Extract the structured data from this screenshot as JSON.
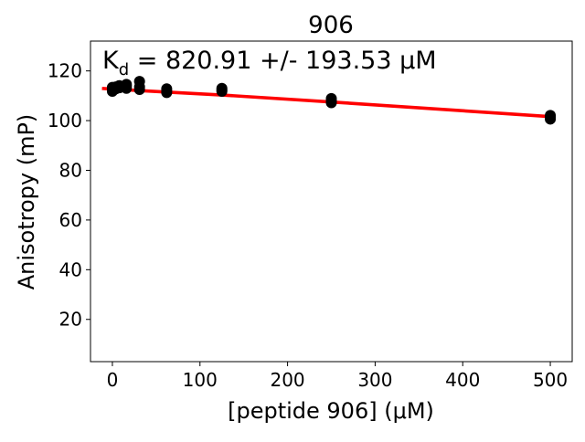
{
  "chart_data": {
    "type": "scatter",
    "title": "906",
    "xlabel": "[peptide 906] (μM)",
    "ylabel": "Anisotropy (mP)",
    "annotation": {
      "prefix": "K",
      "subscript": "d",
      "text": " = 820.91 +/- 193.53 μM"
    },
    "xlim": [
      -25,
      525
    ],
    "ylim": [
      3,
      132
    ],
    "xticks": [
      0,
      100,
      200,
      300,
      400,
      500
    ],
    "yticks": [
      20,
      40,
      60,
      80,
      100,
      120
    ],
    "grid": false,
    "series": [
      {
        "kind": "points",
        "color": "#000000",
        "points": [
          [
            0,
            111.8
          ],
          [
            0,
            113.4
          ],
          [
            0,
            112.9
          ],
          [
            4,
            112.8
          ],
          [
            4,
            113.6
          ],
          [
            8,
            113.2
          ],
          [
            8,
            114.1
          ],
          [
            16,
            113.0
          ],
          [
            16,
            114.6
          ],
          [
            16,
            113.8
          ],
          [
            31,
            112.5
          ],
          [
            31,
            115.8
          ],
          [
            31,
            113.6
          ],
          [
            62,
            111.3
          ],
          [
            62,
            112.8
          ],
          [
            62,
            112.0
          ],
          [
            125,
            111.8
          ],
          [
            125,
            113.0
          ],
          [
            125,
            112.4
          ],
          [
            250,
            107.2
          ],
          [
            250,
            108.9
          ],
          [
            250,
            108.0
          ],
          [
            500,
            100.6
          ],
          [
            500,
            102.1
          ],
          [
            500,
            101.4
          ]
        ]
      },
      {
        "kind": "fit-line",
        "color": "#ff0000",
        "x": [
          -10,
          0,
          31,
          62,
          125,
          250,
          500
        ],
        "y": [
          112.9,
          112.7,
          112.1,
          111.5,
          110.3,
          107.5,
          101.6
        ]
      }
    ]
  }
}
